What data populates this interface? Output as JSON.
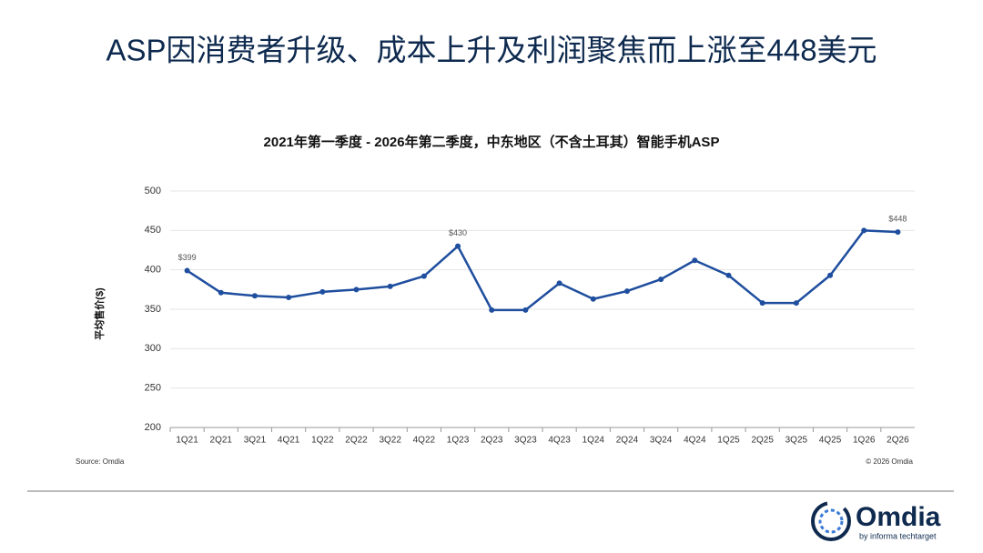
{
  "header": {
    "title": "ASP因消费者升级、成本上升及利润聚焦而上涨至448美元"
  },
  "chart_data": {
    "type": "line",
    "title": "2021年第一季度 - 2026年第二季度，中东地区（不含土耳其）智能手机ASP",
    "y_label": "平均售价($)",
    "categories": [
      "1Q21",
      "2Q21",
      "3Q21",
      "4Q21",
      "1Q22",
      "2Q22",
      "3Q22",
      "4Q22",
      "1Q23",
      "2Q23",
      "3Q23",
      "4Q23",
      "1Q24",
      "2Q24",
      "3Q24",
      "4Q24",
      "1Q25",
      "2Q25",
      "3Q25",
      "4Q25",
      "1Q26",
      "2Q26"
    ],
    "series": [
      {
        "name": "ASP",
        "color": "#1f4e9e",
        "values": [
          399,
          371,
          367,
          365,
          372,
          375,
          379,
          392,
          430,
          349,
          349,
          383,
          363,
          373,
          388,
          412,
          393,
          358,
          358,
          393,
          450,
          448
        ],
        "value_labels": [
          "$399",
          null,
          null,
          null,
          null,
          null,
          null,
          null,
          "$430",
          null,
          null,
          null,
          null,
          null,
          null,
          null,
          null,
          null,
          null,
          null,
          null,
          "$448"
        ]
      }
    ],
    "ylim": [
      200,
      500
    ],
    "yticks": [
      200,
      250,
      300,
      350,
      400,
      450,
      500
    ],
    "grid": true,
    "source": "Source: Omdia",
    "copyright": "© 2026 Omdia"
  },
  "footer": {
    "logo": "Omdia",
    "tagline": "by informa techtarget"
  }
}
